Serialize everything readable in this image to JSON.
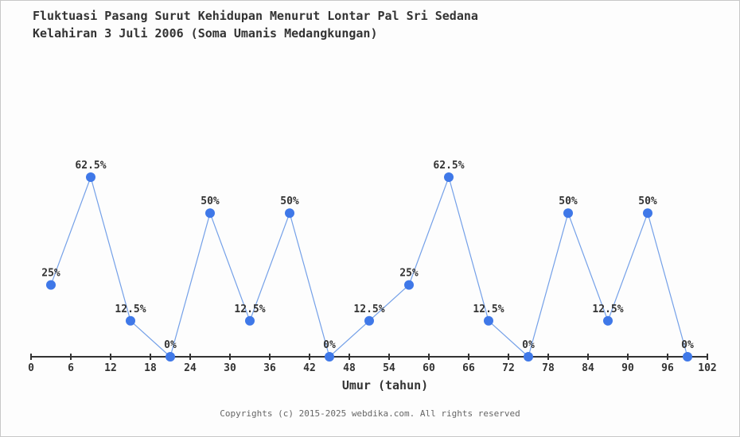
{
  "title": {
    "line1": "Fluktuasi Pasang Surut Kehidupan Menurut Lontar Pal Sri Sedana",
    "line2": "Kelahiran 3 Juli 2006 (Soma Umanis Medangkungan)"
  },
  "footer": {
    "text": "Copyrights (c) 2015-2025 webdika.com. All rights reserved"
  },
  "chart_data": {
    "type": "line",
    "title": "Fluktuasi Pasang Surut Kehidupan Menurut Lontar Pal Sri Sedana Kelahiran 3 Juli 2006 (Soma Umanis Medangkungan)",
    "xlabel": "Umur (tahun)",
    "ylabel": "",
    "x": [
      3,
      9,
      15,
      21,
      27,
      33,
      39,
      45,
      51,
      57,
      63,
      69,
      75,
      81,
      87,
      93,
      99
    ],
    "values": [
      25,
      62.5,
      12.5,
      0,
      50,
      12.5,
      50,
      0,
      12.5,
      25,
      62.5,
      12.5,
      0,
      50,
      12.5,
      50,
      0
    ],
    "point_labels": [
      "25%",
      "62.5%",
      "12.5%",
      "0%",
      "50%",
      "12.5%",
      "50%",
      "0%",
      "12.5%",
      "25%",
      "62.5%",
      "12.5%",
      "0%",
      "50%",
      "12.5%",
      "50%",
      "0%"
    ],
    "x_ticks": [
      0,
      6,
      12,
      18,
      24,
      30,
      36,
      42,
      48,
      54,
      60,
      66,
      72,
      78,
      84,
      90,
      96,
      102
    ],
    "xlim": [
      0,
      102
    ],
    "ylim": [
      0,
      100
    ],
    "grid": false,
    "legend": "none",
    "colors": {
      "marker": "#3f78e8",
      "line": "#74a0e8",
      "axis": "#333333",
      "label_text": "#333333",
      "footer_text": "#666666",
      "background": "#fdfdfd",
      "border": "#c8c8c8"
    }
  }
}
